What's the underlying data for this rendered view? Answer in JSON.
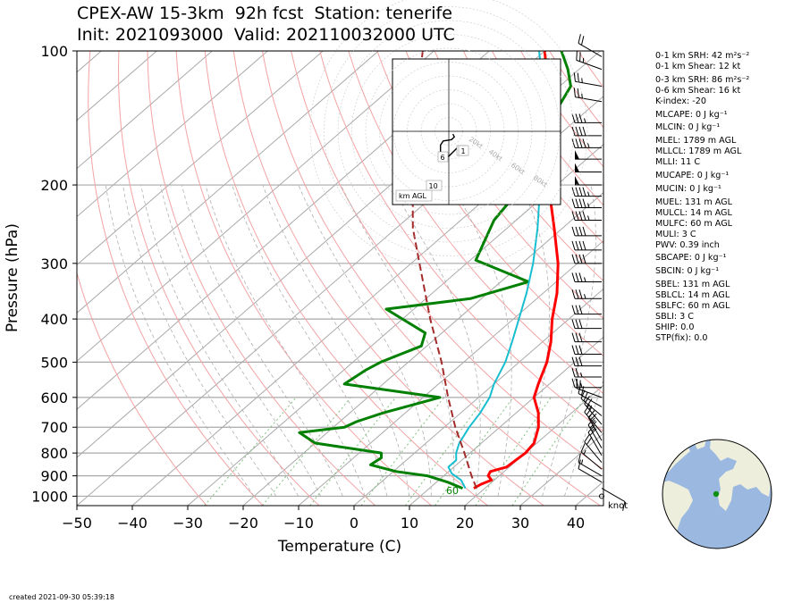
{
  "title_line1": "CPEX-AW 15-3km  92h fcst  Station: tenerife",
  "title_line2": "Init: 2021093000  Valid: 202110032000 UTC",
  "footer_created": "created 2021-09-30 05:39:18",
  "wind_units": "knot",
  "hodo_labels": {
    "ring_labels": [
      "20kt",
      "40kt",
      "60kt",
      "80kt"
    ],
    "height_markers": [
      "2",
      "1",
      "6",
      "10"
    ],
    "box_label": "km AGL"
  },
  "indices": [
    "0-1 km SRH: 42 m²s⁻²",
    "0-1 km Shear: 12 kt",
    "0-3 km SRH: 86 m²s⁻²",
    "0-6 km Shear: 16 kt",
    "K-index: -20",
    "MLCAPE: 0 J kg⁻¹",
    "MLCIN: 0 J kg⁻¹",
    "MLEL: 1789 m AGL",
    "MLLCL: 1789 m AGL",
    "MLLI: 11 C",
    "MUCAPE: 0 J kg⁻¹",
    "MUCIN: 0 J kg⁻¹",
    "MUEL: 131 m AGL",
    "MULCL: 14 m AGL",
    "MULFC: 60 m AGL",
    "MULI: 3 C",
    "PWV: 0.39 inch",
    "SBCAPE: 0 J kg⁻¹",
    "SBCIN: 0 J kg⁻¹",
    "SBEL: 131 m AGL",
    "SBLCL: 14 m AGL",
    "SBLFC: 60 m AGL",
    "SBLI: 3 C",
    "SHIP: 0.0",
    "STP(fix): 0.0"
  ],
  "colors": {
    "temperature": "#ff0000",
    "dewpoint": "#008000",
    "wetbulb": "#17becf",
    "parcel": "#a52a2a",
    "dry_adiabat": "#f4a3a3",
    "moist_adiabat": "#b0b0b0",
    "mixing_ratio": "#80c080",
    "ocean": "#9ab8e0",
    "land": "#eeeedd",
    "station": "#109010"
  },
  "chart_data": {
    "type": "line",
    "subtype": "skew-T log-p",
    "xlabel": "Temperature (C)",
    "ylabel": "Pressure (hPa)",
    "xlim": [
      -50,
      45
    ],
    "ylim": [
      1050,
      100
    ],
    "y_scale": "log",
    "x_ticks": [
      -50,
      -40,
      -30,
      -20,
      -10,
      0,
      10,
      20,
      30,
      40
    ],
    "y_ticks": [
      100,
      200,
      300,
      400,
      500,
      600,
      700,
      800,
      900,
      1000
    ],
    "skew": 45,
    "lfc_label": "60",
    "series": [
      {
        "key": "temperature",
        "color": "#ff0000",
        "points": [
          [
            960,
            18
          ],
          [
            940,
            18.5
          ],
          [
            920,
            19.5
          ],
          [
            900,
            18
          ],
          [
            880,
            17.5
          ],
          [
            860,
            19.5
          ],
          [
            800,
            20
          ],
          [
            760,
            19.5
          ],
          [
            700,
            17
          ],
          [
            650,
            14
          ],
          [
            600,
            10
          ],
          [
            560,
            8
          ],
          [
            500,
            5
          ],
          [
            450,
            1.5
          ],
          [
            400,
            -3
          ],
          [
            350,
            -7.5
          ],
          [
            300,
            -13.5
          ],
          [
            250,
            -21.5
          ],
          [
            200,
            -31.5
          ],
          [
            180,
            -34.5
          ],
          [
            150,
            -42
          ],
          [
            130,
            -48
          ],
          [
            115,
            -54
          ],
          [
            100,
            -60
          ]
        ]
      },
      {
        "key": "dewpoint",
        "color": "#008000",
        "points": [
          [
            960,
            16
          ],
          [
            930,
            12
          ],
          [
            900,
            7
          ],
          [
            880,
            0.5
          ],
          [
            850,
            -5.5
          ],
          [
            820,
            -5
          ],
          [
            800,
            -6
          ],
          [
            760,
            -20
          ],
          [
            720,
            -25
          ],
          [
            700,
            -18
          ],
          [
            680,
            -17
          ],
          [
            650,
            -14
          ],
          [
            600,
            -7
          ],
          [
            560,
            -27
          ],
          [
            520,
            -26
          ],
          [
            500,
            -25
          ],
          [
            460,
            -21
          ],
          [
            430,
            -23
          ],
          [
            380,
            -35
          ],
          [
            360,
            -22
          ],
          [
            330,
            -15
          ],
          [
            295,
            -29
          ],
          [
            240,
            -34
          ],
          [
            200,
            -36
          ],
          [
            180,
            -36.5
          ],
          [
            160,
            -41
          ],
          [
            140,
            -45
          ],
          [
            120,
            -48
          ],
          [
            110,
            -52
          ],
          [
            100,
            -57
          ]
        ]
      },
      {
        "key": "wetbulb",
        "color": "#17becf",
        "points": [
          [
            960,
            16.5
          ],
          [
            920,
            14
          ],
          [
            890,
            11
          ],
          [
            860,
            9
          ],
          [
            830,
            9
          ],
          [
            800,
            7.5
          ],
          [
            760,
            6
          ],
          [
            700,
            4.5
          ],
          [
            650,
            3.5
          ],
          [
            600,
            2
          ],
          [
            560,
            0
          ],
          [
            500,
            -2.5
          ],
          [
            450,
            -5.5
          ],
          [
            400,
            -9
          ],
          [
            350,
            -13
          ],
          [
            300,
            -18
          ],
          [
            250,
            -24.5
          ],
          [
            200,
            -33
          ],
          [
            180,
            -36.5
          ],
          [
            150,
            -44
          ],
          [
            130,
            -50
          ],
          [
            115,
            -55
          ],
          [
            100,
            -61
          ]
        ]
      },
      {
        "key": "parcel",
        "color": "#a52a2a",
        "dashed": true,
        "points": [
          [
            960,
            18.5
          ],
          [
            900,
            15
          ],
          [
            800,
            9
          ],
          [
            700,
            2
          ],
          [
            600,
            -5.5
          ],
          [
            500,
            -14
          ],
          [
            400,
            -25
          ],
          [
            300,
            -38.5
          ],
          [
            250,
            -47
          ],
          [
            200,
            -56
          ],
          [
            150,
            -67
          ],
          [
            120,
            -75.5
          ],
          [
            100,
            -82
          ]
        ]
      }
    ],
    "wind_barbs": [
      {
        "p": 1000,
        "dir": 200,
        "kt": 0
      },
      {
        "p": 960,
        "dir": 120,
        "kt": 8
      },
      {
        "p": 930,
        "dir": 300,
        "kt": 12
      },
      {
        "p": 900,
        "dir": 300,
        "kt": 15
      },
      {
        "p": 870,
        "dir": 310,
        "kt": 15
      },
      {
        "p": 840,
        "dir": 320,
        "kt": 20
      },
      {
        "p": 810,
        "dir": 330,
        "kt": 20
      },
      {
        "p": 780,
        "dir": 330,
        "kt": 25
      },
      {
        "p": 750,
        "dir": 330,
        "kt": 25
      },
      {
        "p": 720,
        "dir": 320,
        "kt": 25
      },
      {
        "p": 690,
        "dir": 320,
        "kt": 25
      },
      {
        "p": 660,
        "dir": 310,
        "kt": 20
      },
      {
        "p": 630,
        "dir": 300,
        "kt": 20
      },
      {
        "p": 600,
        "dir": 290,
        "kt": 20
      },
      {
        "p": 570,
        "dir": 270,
        "kt": 25
      },
      {
        "p": 540,
        "dir": 270,
        "kt": 25
      },
      {
        "p": 510,
        "dir": 270,
        "kt": 30
      },
      {
        "p": 480,
        "dir": 270,
        "kt": 30
      },
      {
        "p": 450,
        "dir": 270,
        "kt": 30
      },
      {
        "p": 420,
        "dir": 270,
        "kt": 30
      },
      {
        "p": 390,
        "dir": 270,
        "kt": 30
      },
      {
        "p": 360,
        "dir": 270,
        "kt": 35
      },
      {
        "p": 330,
        "dir": 270,
        "kt": 35
      },
      {
        "p": 300,
        "dir": 270,
        "kt": 40
      },
      {
        "p": 280,
        "dir": 270,
        "kt": 40
      },
      {
        "p": 260,
        "dir": 270,
        "kt": 40
      },
      {
        "p": 240,
        "dir": 270,
        "kt": 45
      },
      {
        "p": 225,
        "dir": 270,
        "kt": 45
      },
      {
        "p": 212,
        "dir": 270,
        "kt": 45
      },
      {
        "p": 200,
        "dir": 270,
        "kt": 50
      },
      {
        "p": 187,
        "dir": 270,
        "kt": 50
      },
      {
        "p": 175,
        "dir": 270,
        "kt": 50
      },
      {
        "p": 165,
        "dir": 270,
        "kt": 45
      },
      {
        "p": 155,
        "dir": 270,
        "kt": 40
      },
      {
        "p": 145,
        "dir": 270,
        "kt": 35
      },
      {
        "p": 130,
        "dir": 280,
        "kt": 25
      },
      {
        "p": 120,
        "dir": 280,
        "kt": 25
      },
      {
        "p": 110,
        "dir": 290,
        "kt": 25
      },
      {
        "p": 103,
        "dir": 300,
        "kt": 20
      }
    ],
    "hodograph": {
      "ring_speeds_kt": [
        20,
        40,
        60,
        80
      ],
      "path_uv_kt": [
        [
          3,
          -2
        ],
        [
          4,
          -4
        ],
        [
          2,
          -6
        ],
        [
          -4,
          -7
        ],
        [
          -6,
          -10
        ],
        [
          -6,
          -16
        ],
        [
          -3,
          -18
        ],
        [
          0,
          -18
        ],
        [
          4,
          -14
        ],
        [
          7,
          -11
        ]
      ]
    }
  }
}
